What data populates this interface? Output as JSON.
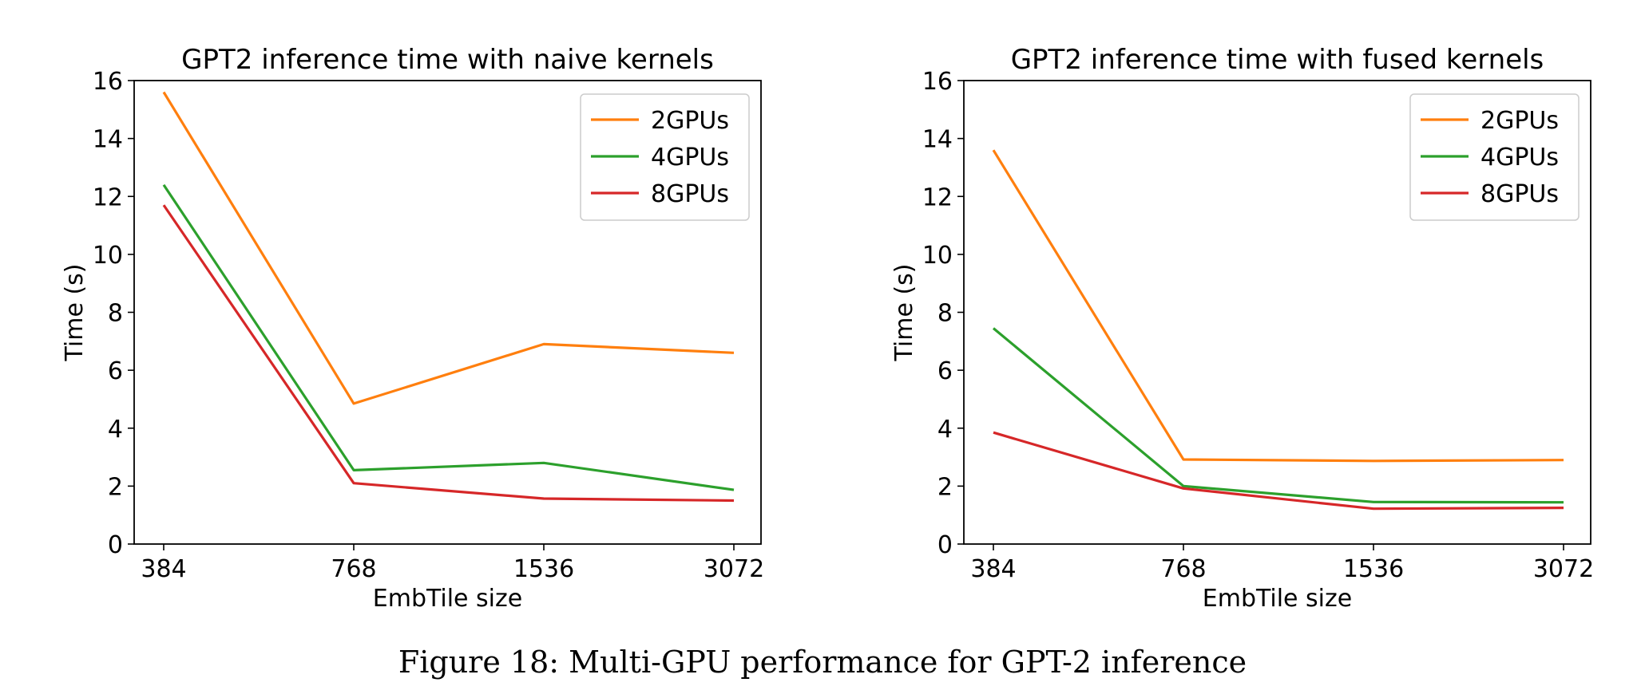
{
  "caption": "Figure 18: Multi-GPU performance for GPT-2 inference",
  "chart_data": [
    {
      "type": "line",
      "title": "GPT2 inference time with naive kernels",
      "xlabel": "EmbTile size",
      "ylabel": "Time (s)",
      "categories": [
        "384",
        "768",
        "1536",
        "3072"
      ],
      "ylim": [
        0,
        16
      ],
      "yticks": [
        "0",
        "2",
        "4",
        "6",
        "8",
        "10",
        "12",
        "14",
        "16"
      ],
      "grid": false,
      "legend_position": "top-right",
      "series": [
        {
          "name": "2GPUs",
          "color": "#ff7f0e",
          "values": [
            15.6,
            4.85,
            6.9,
            6.6
          ]
        },
        {
          "name": "4GPUs",
          "color": "#2ca02c",
          "values": [
            12.4,
            2.55,
            2.8,
            1.87
          ]
        },
        {
          "name": "8GPUs",
          "color": "#d62728",
          "values": [
            11.7,
            2.1,
            1.57,
            1.5
          ]
        }
      ]
    },
    {
      "type": "line",
      "title": "GPT2 inference time with fused kernels",
      "xlabel": "EmbTile size",
      "ylabel": "Time (s)",
      "categories": [
        "384",
        "768",
        "1536",
        "3072"
      ],
      "ylim": [
        0,
        16
      ],
      "yticks": [
        "0",
        "2",
        "4",
        "6",
        "8",
        "10",
        "12",
        "14",
        "16"
      ],
      "grid": false,
      "legend_position": "top-right",
      "series": [
        {
          "name": "2GPUs",
          "color": "#ff7f0e",
          "values": [
            13.6,
            2.92,
            2.87,
            2.9
          ]
        },
        {
          "name": "4GPUs",
          "color": "#2ca02c",
          "values": [
            7.45,
            2.0,
            1.45,
            1.44
          ]
        },
        {
          "name": "8GPUs",
          "color": "#d62728",
          "values": [
            3.85,
            1.92,
            1.22,
            1.25
          ]
        }
      ]
    }
  ]
}
